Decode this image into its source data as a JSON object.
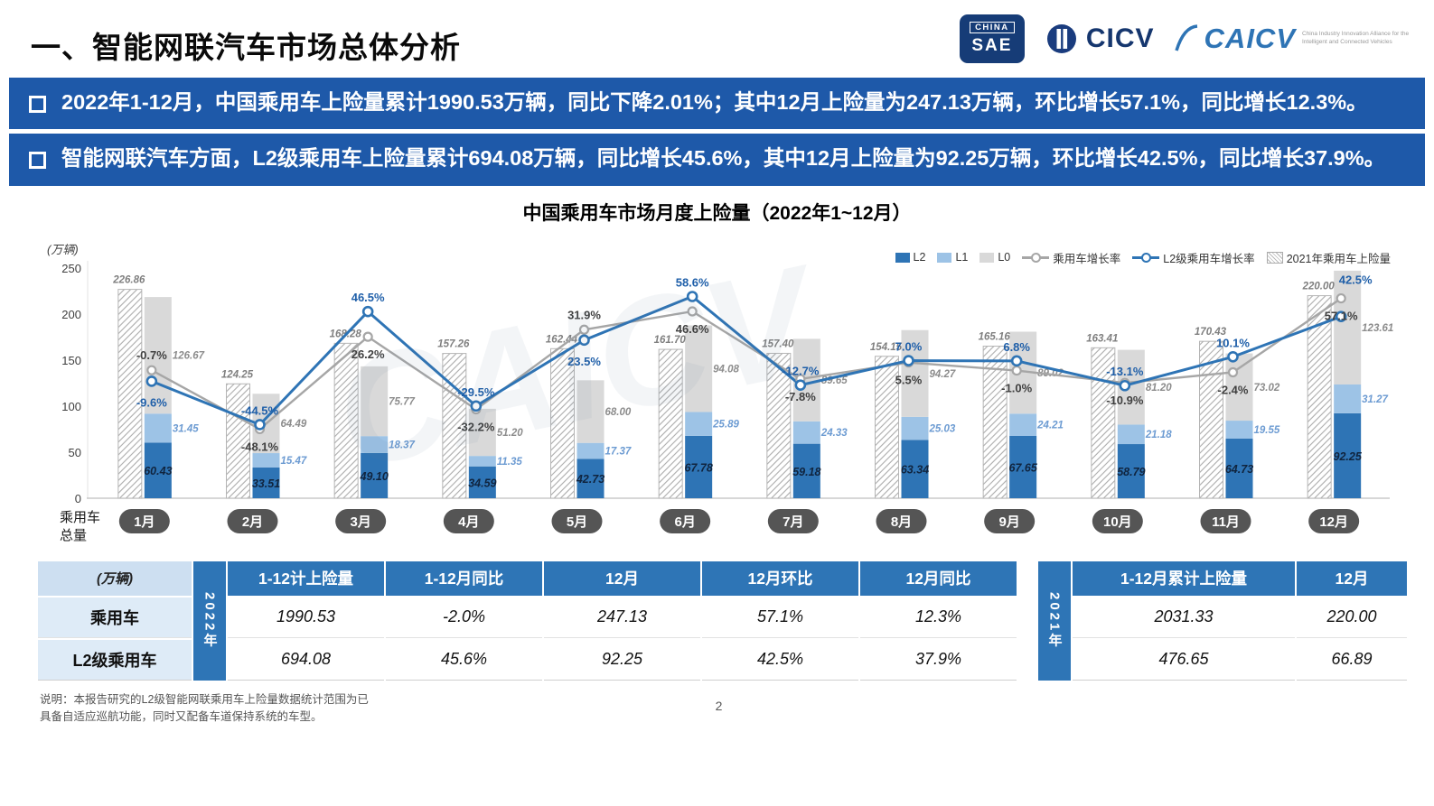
{
  "header": {
    "title": "一、智能网联汽车市场总体分析",
    "logos": {
      "sae_top": "CHINA",
      "sae_bottom": "SAE",
      "cicv_text": "CICV",
      "caicv_text": "CAICV",
      "caicv_tagline": "China Industry Innovation Alliance for the Intelligent and Connected Vehicles"
    }
  },
  "bullets": [
    "2022年1-12月，中国乘用车上险量累计1990.53万辆，同比下降2.01%；其中12月上险量为247.13万辆，环比增长57.1%，同比增长12.3%。",
    "智能网联汽车方面，L2级乘用车上险量累计694.08万辆，同比增长45.6%，其中12月上险量为92.25万辆，环比增长42.5%，同比增长37.9%。"
  ],
  "chart_data": {
    "type": "bar+line",
    "title": "中国乘用车市场月度上险量（2022年1~12月）",
    "y_axis_unit": "(万辆)",
    "y_ticks": [
      0,
      50,
      100,
      150,
      200,
      250
    ],
    "ylim": [
      0,
      250
    ],
    "months": [
      "1月",
      "2月",
      "3月",
      "4月",
      "5月",
      "6月",
      "7月",
      "8月",
      "9月",
      "10月",
      "11月",
      "12月"
    ],
    "x_axis_caption": "乘用车\n总量",
    "series": [
      {
        "name": "L2",
        "type": "bar-stacked",
        "color": "#2E74B5",
        "values": [
          60.43,
          33.51,
          49.1,
          34.59,
          42.73,
          67.78,
          59.18,
          63.34,
          67.65,
          58.79,
          64.73,
          92.25
        ]
      },
      {
        "name": "L1",
        "type": "bar-stacked",
        "color": "#9DC3E6",
        "values": [
          31.45,
          15.47,
          18.37,
          11.35,
          17.37,
          25.89,
          24.33,
          25.03,
          24.21,
          21.18,
          19.55,
          31.27
        ]
      },
      {
        "name": "L0",
        "type": "bar-stacked",
        "color": "#D9D9D9",
        "values": [
          126.67,
          64.49,
          75.77,
          51.2,
          68.0,
          94.08,
          89.65,
          94.27,
          89.02,
          81.2,
          73.02,
          123.61
        ]
      },
      {
        "name": "2021年乘用车上险量",
        "type": "bar-hatched",
        "color": "#FFFFFF",
        "values": [
          226.86,
          124.25,
          168.28,
          157.26,
          162.44,
          161.7,
          157.4,
          154.15,
          165.16,
          163.41,
          170.43,
          220.0
        ]
      },
      {
        "name": "乘用车增长率",
        "type": "line",
        "color": "#A6A6A6",
        "values_pct": [
          -0.7,
          -48.1,
          26.2,
          -32.2,
          31.9,
          46.6,
          -7.8,
          5.5,
          -1.0,
          -10.9,
          -2.4,
          57.1
        ]
      },
      {
        "name": "L2级乘用车增长率",
        "type": "line",
        "color": "#2E74B5",
        "values_pct": [
          -9.6,
          -44.5,
          46.5,
          -29.5,
          23.5,
          58.6,
          -12.7,
          7.0,
          6.8,
          -13.1,
          10.1,
          42.5
        ]
      }
    ],
    "legend": [
      {
        "label": "L2",
        "swatch": "bar",
        "color": "#2E74B5"
      },
      {
        "label": "L1",
        "swatch": "bar",
        "color": "#9DC3E6"
      },
      {
        "label": "L0",
        "swatch": "bar",
        "color": "#D9D9D9"
      },
      {
        "label": "乘用车增长率",
        "swatch": "line",
        "color": "#A6A6A6"
      },
      {
        "label": "L2级乘用车增长率",
        "swatch": "line",
        "color": "#2E74B5"
      },
      {
        "label": "2021年乘用车上险量",
        "swatch": "hatch",
        "color": "#BFBFBF"
      }
    ],
    "legend_position": "top-right",
    "grid": false
  },
  "tables": {
    "t2022": {
      "year": "2022年",
      "corner": "(万辆)",
      "headers": [
        "1-12计上险量",
        "1-12月同比",
        "12月",
        "12月环比",
        "12月同比"
      ],
      "rows": [
        {
          "label": "乘用车",
          "values": [
            "1990.53",
            "-2.0%",
            "247.13",
            "57.1%",
            "12.3%"
          ]
        },
        {
          "label": "L2级乘用车",
          "values": [
            "694.08",
            "45.6%",
            "92.25",
            "42.5%",
            "37.9%"
          ]
        }
      ]
    },
    "t2021": {
      "year": "2021年",
      "headers": [
        "1-12月累计上险量",
        "12月"
      ],
      "rows": [
        [
          "2031.33",
          "220.00"
        ],
        [
          "476.65",
          "66.89"
        ]
      ]
    }
  },
  "footer": {
    "note": "说明：本报告研究的L2级智能网联乘用车上险量数据统计范围为已\n具备自适应巡航功能，同时又配备车道保持系统的车型。",
    "page": "2"
  },
  "watermark": "CAICV",
  "colors": {
    "bullet_bar": "#1E59A9",
    "table_header": "#2E75B6",
    "month_pill": "#555555"
  }
}
